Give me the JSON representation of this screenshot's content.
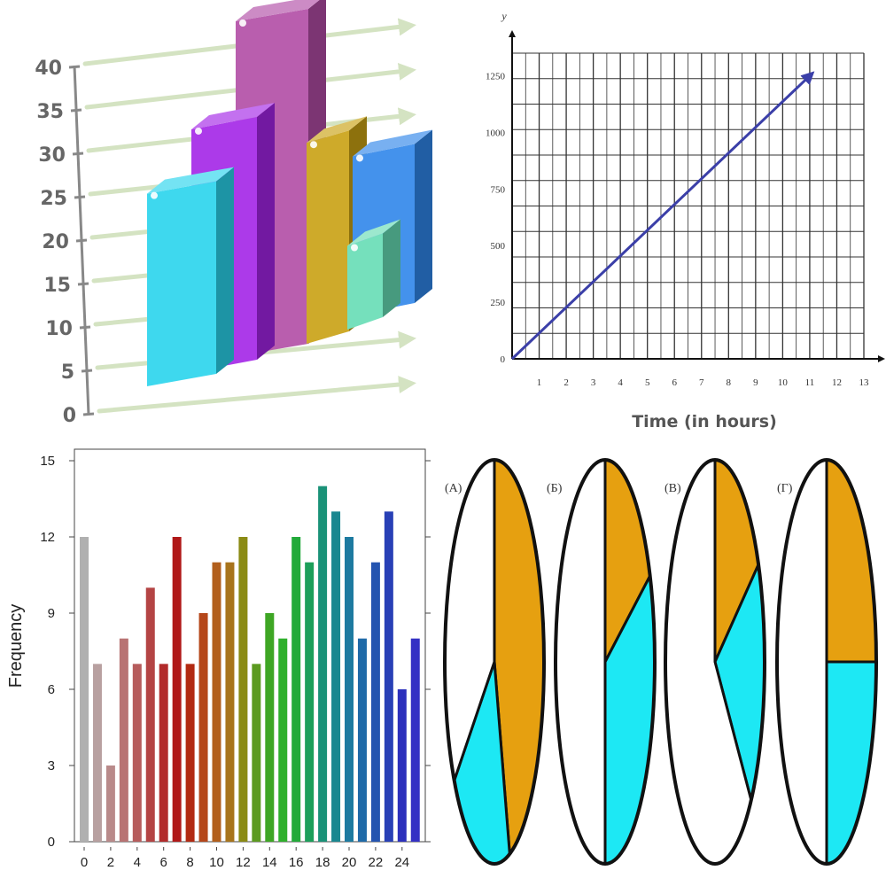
{
  "panels": {
    "bar3d": {
      "chart_data": {
        "type": "bar",
        "title": "",
        "yticks": [
          "0",
          "5",
          "10",
          "15",
          "20",
          "25",
          "30",
          "35",
          "40"
        ],
        "ylim": [
          0,
          40
        ],
        "values": [
          23,
          29,
          40,
          24,
          10,
          19
        ],
        "colors": [
          "#29d4ec",
          "#a324e6",
          "#b14ca5",
          "#c9a112",
          "#66dcb4",
          "#2f86ea"
        ]
      }
    },
    "line": {
      "chart_data": {
        "type": "line",
        "title": "",
        "xlabel": "Time (in hours)",
        "ylabel": "y",
        "xticks": [
          "1",
          "2",
          "3",
          "4",
          "5",
          "6",
          "7",
          "8",
          "9",
          "10",
          "11",
          "12",
          "13"
        ],
        "yticks": [
          "0",
          "250",
          "500",
          "750",
          "1000",
          "1250"
        ],
        "xlim": [
          0,
          13
        ],
        "ylim": [
          0,
          1350
        ],
        "series": [
          {
            "x": [
              0,
              11
            ],
            "y": [
              0,
              1250
            ]
          }
        ],
        "grid": true,
        "line_color": "#3b3fa8"
      }
    },
    "hist": {
      "chart_data": {
        "type": "bar",
        "title": "",
        "ylabel": "Frequency",
        "xticks": [
          "0",
          "2",
          "4",
          "6",
          "8",
          "10",
          "12",
          "14",
          "16",
          "18",
          "20",
          "22",
          "24"
        ],
        "yticks": [
          "0",
          "3",
          "6",
          "9",
          "12",
          "15"
        ],
        "ylim": [
          0,
          15
        ],
        "categories": [
          "0",
          "1",
          "2",
          "3",
          "4",
          "5",
          "6",
          "7",
          "8",
          "9",
          "10",
          "11",
          "12",
          "13",
          "14",
          "15",
          "16",
          "17",
          "18",
          "19",
          "20",
          "21",
          "22",
          "23",
          "24",
          "25"
        ],
        "values": [
          12,
          7,
          3,
          8,
          7,
          10,
          7,
          12,
          7,
          9,
          11,
          11,
          12,
          7,
          9,
          8,
          12,
          11,
          14,
          13,
          12,
          8,
          11,
          13,
          6,
          8
        ]
      }
    },
    "pies": {
      "chart_data": {
        "type": "pie",
        "colors": {
          "orange": "#e6a010",
          "cyan": "#1de8f4",
          "white": "#ffffff"
        },
        "pies": [
          {
            "label": "(A)",
            "slices": [
              {
                "name": "orange",
                "value": 0.45
              },
              {
                "name": "cyan",
                "value": 0.2
              },
              {
                "name": "white",
                "value": 0.35
              }
            ]
          },
          {
            "label": "(Б)",
            "slices": [
              {
                "name": "orange",
                "value": 0.18
              },
              {
                "name": "cyan",
                "value": 0.32
              },
              {
                "name": "white",
                "value": 0.5
              }
            ]
          },
          {
            "label": "(В)",
            "slices": [
              {
                "name": "orange",
                "value": 0.17
              },
              {
                "name": "cyan",
                "value": 0.2
              },
              {
                "name": "white",
                "value": 0.63
              }
            ]
          },
          {
            "label": "(Г)",
            "slices": [
              {
                "name": "orange",
                "value": 0.25
              },
              {
                "name": "cyan",
                "value": 0.25
              },
              {
                "name": "white",
                "value": 0.5
              }
            ]
          }
        ]
      }
    }
  }
}
